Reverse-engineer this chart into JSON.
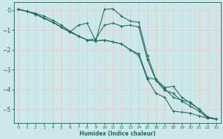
{
  "xlabel": "Humidex (Indice chaleur)",
  "bg_color": "#cde8e8",
  "grid_color": "#e8c8c8",
  "line_color": "#1e6b5e",
  "xlim": [
    -0.5,
    23.5
  ],
  "ylim": [
    -5.7,
    0.4
  ],
  "yticks": [
    0,
    -1,
    -2,
    -3,
    -4,
    -5
  ],
  "xticks": [
    0,
    1,
    2,
    3,
    4,
    5,
    6,
    7,
    8,
    9,
    10,
    11,
    12,
    13,
    14,
    15,
    16,
    17,
    18,
    19,
    20,
    21,
    22,
    23
  ],
  "series": [
    {
      "x": [
        0,
        1,
        2,
        3,
        4,
        5,
        6,
        7,
        8,
        9,
        10,
        11,
        12,
        13,
        14,
        15,
        16,
        17,
        18,
        19,
        20,
        21,
        22,
        23
      ],
      "y": [
        0.05,
        -0.05,
        -0.15,
        -0.3,
        -0.5,
        -0.75,
        -1.05,
        -1.3,
        -1.5,
        -1.55,
        -1.5,
        -1.6,
        -1.7,
        -2.0,
        -2.3,
        -3.5,
        -4.2,
        -4.4,
        -5.1,
        -5.15,
        -5.2,
        -5.35,
        -5.45,
        -5.5
      ]
    },
    {
      "x": [
        0,
        1,
        2,
        3,
        4,
        5,
        6,
        7,
        8,
        9,
        10,
        11,
        12,
        13,
        14,
        15,
        16,
        17,
        18,
        19,
        20,
        21,
        22,
        23
      ],
      "y": [
        0.05,
        -0.05,
        -0.2,
        -0.4,
        -0.6,
        -0.85,
        -1.1,
        -0.75,
        -0.65,
        -1.55,
        0.05,
        0.08,
        -0.3,
        -0.55,
        -0.6,
        -2.3,
        -3.5,
        -3.9,
        -3.85,
        -4.4,
        -4.7,
        -5.0,
        -5.4,
        -5.5
      ]
    },
    {
      "x": [
        0,
        1,
        2,
        3,
        4,
        5,
        6,
        7,
        8,
        9,
        10,
        11,
        12,
        13,
        14,
        15,
        16,
        17,
        18,
        19,
        20,
        21,
        22,
        23
      ],
      "y": [
        0.05,
        -0.05,
        -0.2,
        -0.4,
        -0.6,
        -0.85,
        -1.1,
        -1.3,
        -1.5,
        -1.55,
        -1.5,
        -1.6,
        -1.7,
        -2.0,
        -2.2,
        -3.4,
        -3.5,
        -3.95,
        -4.4,
        -4.55,
        -4.65,
        -5.0,
        -5.4,
        -5.5
      ]
    },
    {
      "x": [
        0,
        1,
        2,
        3,
        4,
        5,
        6,
        7,
        8,
        9,
        10,
        11,
        12,
        13,
        14,
        15,
        16,
        17,
        18,
        19,
        20,
        21,
        22,
        23
      ],
      "y": [
        0.05,
        -0.05,
        -0.2,
        -0.4,
        -0.6,
        -0.85,
        -1.1,
        -1.3,
        -1.5,
        -1.45,
        -0.75,
        -0.65,
        -0.8,
        -0.75,
        -0.85,
        -2.5,
        -3.55,
        -4.05,
        -4.2,
        -4.6,
        -4.85,
        -5.1,
        -5.45,
        -5.5
      ]
    }
  ]
}
